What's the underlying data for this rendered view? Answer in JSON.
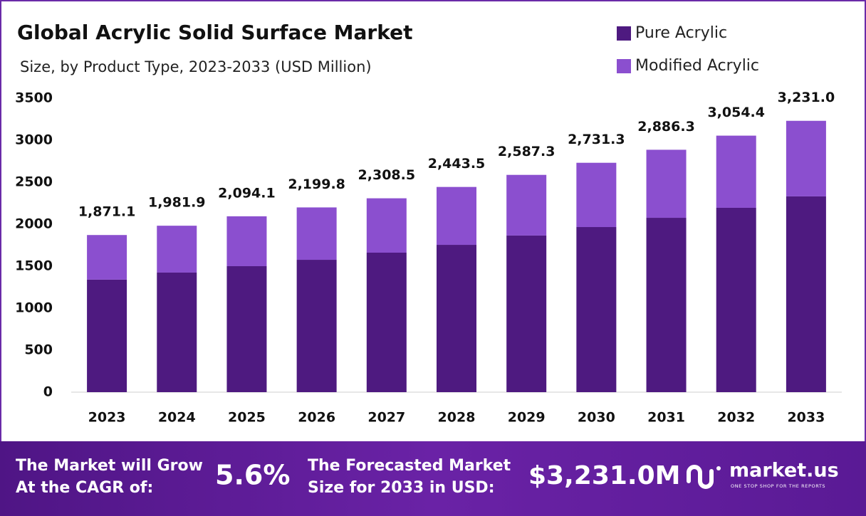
{
  "chart_data": {
    "type": "stacked_bar",
    "title": "Global Acrylic Solid Surface Market",
    "subtitle": "Size, by Product Type, 2023-2033 (USD Million)",
    "categories": [
      "2023",
      "2024",
      "2025",
      "2026",
      "2027",
      "2028",
      "2029",
      "2030",
      "2031",
      "2032",
      "2033"
    ],
    "series": [
      {
        "name": "Pure Acrylic",
        "color": "#4e1a80",
        "values": [
          1340,
          1424,
          1500,
          1576,
          1661,
          1754,
          1865,
          1966,
          2076,
          2195,
          2331
        ]
      },
      {
        "name": "Modified Acrylic",
        "color": "#8b4fcf",
        "values": [
          531.1,
          557.9,
          594.1,
          623.8,
          647.5,
          689.5,
          722.3,
          765.3,
          810.3,
          859.4,
          900.0
        ]
      }
    ],
    "totals": [
      1871.1,
      1981.9,
      2094.1,
      2199.8,
      2308.5,
      2443.5,
      2587.3,
      2731.3,
      2886.3,
      3054.4,
      3231.0
    ],
    "total_labels": [
      "1,871.1",
      "1,981.9",
      "2,094.1",
      "2,199.8",
      "2,308.5",
      "2,443.5",
      "2,587.3",
      "2,731.3",
      "2,886.3",
      "3,054.4",
      "3,231.0"
    ],
    "ylim": [
      0,
      3500
    ],
    "yticks": [
      0,
      500,
      1000,
      1500,
      2000,
      2500,
      3000,
      3500
    ],
    "grid": false,
    "legend": "top-right"
  },
  "footer": {
    "cagr_text": [
      "The Market will Grow",
      "At the CAGR of:"
    ],
    "cagr_value": "5.6%",
    "forecast_text": [
      "The Forecasted Market",
      "Size for 2033 in USD:"
    ],
    "forecast_value": "$3,231.0M",
    "brand": "market.us",
    "tagline": "ONE STOP SHOP FOR THE REPORTS"
  }
}
